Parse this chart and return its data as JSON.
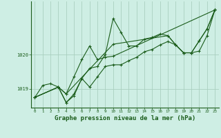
{
  "background_color": "#ceeee4",
  "grid_color": "#aacfbf",
  "line_color": "#1a5c1a",
  "xlabel": "Graphe pression niveau de la mer (hPa)",
  "xlabel_fontsize": 6.5,
  "ylabel_ticks": [
    1019,
    1020
  ],
  "xlim": [
    -0.5,
    23.5
  ],
  "ylim": [
    1018.45,
    1021.55
  ],
  "xticks": [
    0,
    1,
    2,
    3,
    4,
    5,
    6,
    7,
    8,
    9,
    10,
    11,
    12,
    13,
    14,
    15,
    16,
    17,
    18,
    19,
    20,
    21,
    22,
    23
  ],
  "series": [
    {
      "x": [
        0,
        1,
        2,
        3,
        4,
        5,
        6,
        7,
        8,
        9,
        10,
        11,
        12,
        13,
        14,
        15,
        16,
        17,
        18,
        19,
        20,
        21,
        22,
        23
      ],
      "y": [
        1018.75,
        1019.1,
        1019.15,
        1019.05,
        1018.6,
        1018.8,
        1019.3,
        1019.6,
        1019.65,
        1020.0,
        1021.05,
        1020.65,
        1020.25,
        1020.25,
        1020.45,
        1020.5,
        1020.6,
        1020.55,
        1020.28,
        1020.05,
        1020.05,
        1020.4,
        1020.75,
        1021.3
      ]
    },
    {
      "x": [
        0,
        3,
        4,
        5,
        6,
        7,
        8,
        9,
        10,
        11,
        12,
        13,
        14,
        15,
        16,
        17,
        18,
        19,
        20,
        21,
        22,
        23
      ],
      "y": [
        1018.75,
        1019.05,
        1018.6,
        1018.85,
        1019.3,
        1019.05,
        1019.35,
        1019.65,
        1019.7,
        1019.7,
        1019.82,
        1019.92,
        1020.08,
        1020.15,
        1020.28,
        1020.38,
        1020.28,
        1020.05,
        1020.05,
        1020.1,
        1020.55,
        1021.3
      ]
    },
    {
      "x": [
        0,
        3,
        4,
        5,
        6,
        7,
        8,
        9,
        10,
        23
      ],
      "y": [
        1018.75,
        1019.05,
        1018.85,
        1019.35,
        1019.85,
        1020.25,
        1019.85,
        1019.92,
        1019.95,
        1021.3
      ]
    },
    {
      "x": [
        0,
        3,
        4,
        10,
        17,
        18,
        19,
        20,
        21,
        22,
        23
      ],
      "y": [
        1018.75,
        1019.05,
        1018.85,
        1020.3,
        1020.55,
        1020.28,
        1020.05,
        1020.05,
        1020.4,
        1020.75,
        1021.3
      ]
    }
  ]
}
